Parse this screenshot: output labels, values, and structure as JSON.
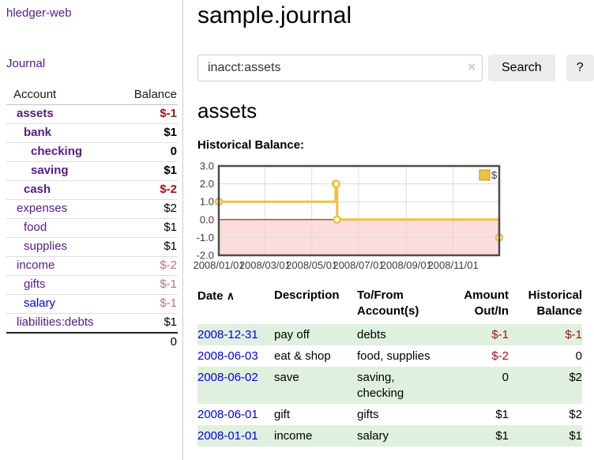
{
  "colors": {
    "purple_link": "#551a8b",
    "blue_link": "#0000dd",
    "negative_strong": "#a01414",
    "negative_muted": "#b87878",
    "row_shaded_green": "#dff0df",
    "chart_negative_region_pink": "#fcdcdc",
    "chart_zero_line_red": "#8b2020",
    "chart_grid": "#dcdcdc",
    "chart_border": "#4d4d4d",
    "chart_legend_swatch_border": "#b5952f"
  },
  "sidebar": {
    "brand": "hledger-web",
    "nav_journal": "Journal",
    "accounts_table": {
      "headers": [
        "Account",
        "Balance"
      ],
      "rows": [
        {
          "account": "assets",
          "balance": "$-1",
          "indent": 1,
          "bold": true,
          "balance_style": "neg",
          "link_style": "purple"
        },
        {
          "account": "bank",
          "balance": "$1",
          "indent": 2,
          "bold": true,
          "balance_style": "",
          "link_style": "purple"
        },
        {
          "account": "checking",
          "balance": "0",
          "indent": 3,
          "bold": true,
          "balance_style": "",
          "link_style": "purple"
        },
        {
          "account": "saving",
          "balance": "$1",
          "indent": 3,
          "bold": true,
          "balance_style": "",
          "link_style": "purple"
        },
        {
          "account": "cash",
          "balance": "$-2",
          "indent": 2,
          "bold": true,
          "balance_style": "neg",
          "link_style": "purple"
        },
        {
          "account": "expenses",
          "balance": "$2",
          "indent": 1,
          "bold": false,
          "balance_style": "",
          "link_style": "purple"
        },
        {
          "account": "food",
          "balance": "$1",
          "indent": 2,
          "bold": false,
          "balance_style": "",
          "link_style": "purple"
        },
        {
          "account": "supplies",
          "balance": "$1",
          "indent": 2,
          "bold": false,
          "balance_style": "",
          "link_style": "purple"
        },
        {
          "account": "income",
          "balance": "$-2",
          "indent": 1,
          "bold": false,
          "balance_style": "negm",
          "link_style": "purple"
        },
        {
          "account": "gifts",
          "balance": "$-1",
          "indent": 2,
          "bold": false,
          "balance_style": "negm",
          "link_style": "purple"
        },
        {
          "account": "salary",
          "balance": "$-1",
          "indent": 2,
          "bold": false,
          "balance_style": "negm",
          "link_style": "blue"
        },
        {
          "account": "liabilities:debts",
          "balance": "$1",
          "indent": 1,
          "bold": false,
          "balance_style": "",
          "link_style": "purple"
        }
      ],
      "total": "0"
    }
  },
  "header": {
    "title": "sample.journal"
  },
  "search": {
    "value": "inacct:assets",
    "clear_icon": "×",
    "search_button": "Search",
    "help_button": "?"
  },
  "account_page": {
    "heading": "assets",
    "chart_title": "Historical Balance:"
  },
  "chart_data": {
    "type": "line",
    "steps": true,
    "title": "Historical Balance:",
    "series": [
      {
        "name": "$",
        "color": "#edc240",
        "points": [
          [
            "2008-01-01",
            1
          ],
          [
            "2008-06-01",
            2
          ],
          [
            "2008-06-02",
            2
          ],
          [
            "2008-06-03",
            0
          ],
          [
            "2008-12-31",
            -1
          ]
        ]
      }
    ],
    "xlim": [
      "2008-01-01",
      "2008-12-31"
    ],
    "ylim": [
      -2,
      3
    ],
    "yticks": [
      "3.0",
      "2.0",
      "1.0",
      "0.0",
      "-1.0",
      "-2.0"
    ],
    "xticks": [
      {
        "date": "2008-01-01",
        "label": "2008/01/01"
      },
      {
        "date": "2008-03-01",
        "label": "2008/03/01"
      },
      {
        "date": "2008-05-01",
        "label": "2008/05/01"
      },
      {
        "date": "2008-07-01",
        "label": "2008/07/01"
      },
      {
        "date": "2008-09-01",
        "label": "2008/09/01"
      },
      {
        "date": "2008-11-01",
        "label": "2008/11/01"
      }
    ],
    "legend": {
      "label": "$",
      "position": "top-right"
    },
    "grid": true
  },
  "register": {
    "sort_icon": "∧",
    "headers": {
      "date": "Date",
      "description": "Description",
      "tofrom": [
        "To/From",
        "Account(s)"
      ],
      "amount": [
        "Amount",
        "Out/In"
      ],
      "balance": [
        "Historical",
        "Balance"
      ]
    },
    "rows": [
      {
        "date": "2008-12-31",
        "description": "pay off",
        "accounts": [
          "debts"
        ],
        "amount": "$-1",
        "amount_style": "neg",
        "balance": "$-1",
        "balance_style": "neg",
        "shaded": true
      },
      {
        "date": "2008-06-03",
        "description": "eat & shop",
        "accounts": [
          "food, supplies"
        ],
        "amount": "$-2",
        "amount_style": "neg",
        "balance": "0",
        "balance_style": "",
        "shaded": false
      },
      {
        "date": "2008-06-02",
        "description": "save",
        "accounts": [
          "saving,",
          "checking"
        ],
        "amount": "0",
        "amount_style": "",
        "balance": "$2",
        "balance_style": "",
        "shaded": true
      },
      {
        "date": "2008-06-01",
        "description": "gift",
        "accounts": [
          "gifts"
        ],
        "amount": "$1",
        "amount_style": "",
        "balance": "$2",
        "balance_style": "",
        "shaded": false
      },
      {
        "date": "2008-01-01",
        "description": "income",
        "accounts": [
          "salary"
        ],
        "amount": "$1",
        "amount_style": "",
        "balance": "$1",
        "balance_style": "",
        "shaded": true
      }
    ]
  }
}
